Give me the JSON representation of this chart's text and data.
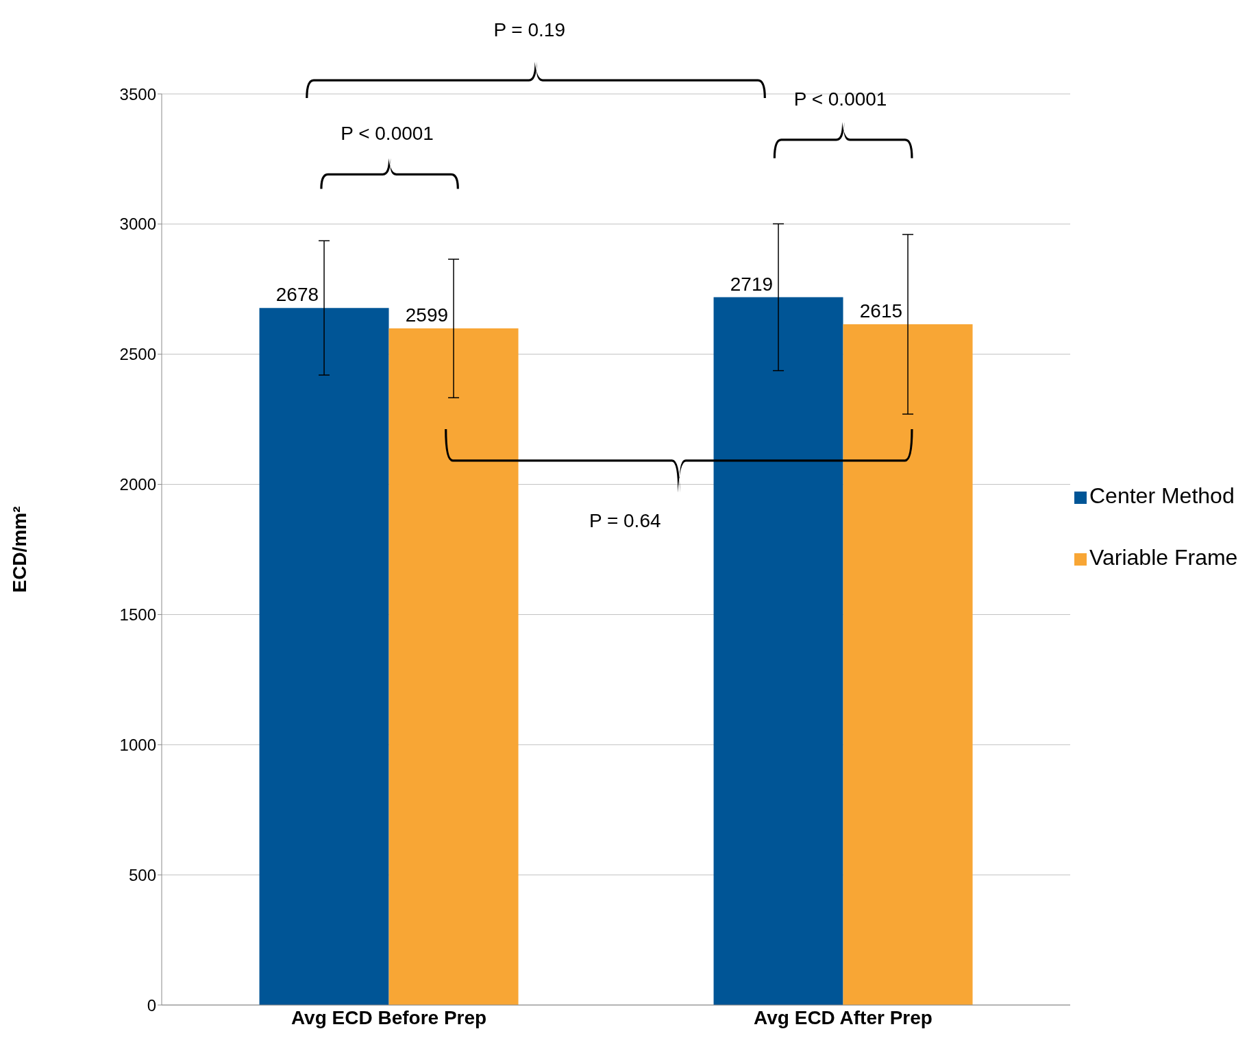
{
  "chart_data": {
    "type": "bar",
    "ylabel": "ECD/mm²",
    "categories": [
      "Avg ECD Before Prep",
      "Avg ECD After Prep"
    ],
    "series": [
      {
        "name": "Center Method",
        "color": "#005596",
        "values": [
          2678,
          2719
        ],
        "errors": [
          258,
          282
        ]
      },
      {
        "name": "Variable Frame",
        "color": "#f8a635",
        "values": [
          2599,
          2615
        ],
        "errors": [
          266,
          345
        ]
      }
    ],
    "ylim": [
      0,
      3500
    ],
    "yticks": [
      0,
      500,
      1000,
      1500,
      2000,
      2500,
      3000,
      3500
    ],
    "grid": "y",
    "legend": "right",
    "data_labels": true,
    "annotations": [
      "P = 0.19",
      "P < 0.0001",
      "P < 0.0001",
      "P = 0.64"
    ]
  }
}
